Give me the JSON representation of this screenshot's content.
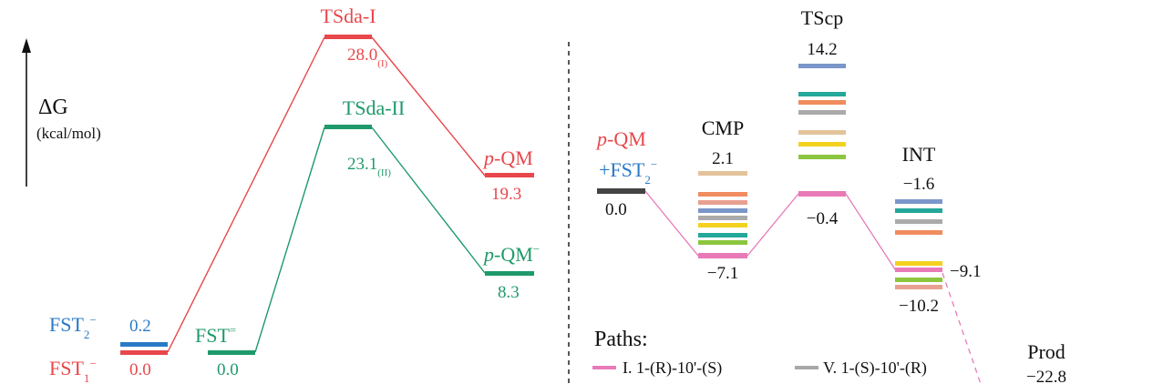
{
  "colors": {
    "red": "#e8474b",
    "green": "#1e9a6a",
    "blue": "#2a79c6",
    "pink": "#e87ab8",
    "dark": "#444444",
    "gray": "#a8a8a8",
    "black": "#111111"
  },
  "left_panel": {
    "axis_label": "ΔG",
    "axis_unit": "(kcal/mol)",
    "fst1": {
      "base": "FST",
      "sub": "1",
      "sup": "−",
      "value": "0.0"
    },
    "fst2": {
      "base": "FST",
      "sub": "2",
      "sup": "−",
      "value": "0.2"
    },
    "fst_eq": {
      "base": "FST",
      "sup": "=",
      "value": "0.0"
    },
    "tsda1": {
      "label": "TSda-I",
      "value": "28.0",
      "sub": "(I)"
    },
    "tsda2": {
      "label": "TSda-II",
      "value": "23.1",
      "sub": "(II)"
    },
    "pqm": {
      "italic": "p",
      "rest": "-QM",
      "value": "19.3"
    },
    "pqm_minus": {
      "italic": "p",
      "rest": "-QM",
      "sup": "−",
      "value": "8.3"
    }
  },
  "right_panel": {
    "start": {
      "line1_italic": "p",
      "line1_rest": "-QM",
      "line2_prefix": "+FST",
      "line2_sub": "2",
      "line2_sup": "−",
      "value": "0.0"
    },
    "cmp": {
      "label": "CMP",
      "top_value": "2.1",
      "bottom_value": "−7.1"
    },
    "tscp": {
      "label": "TScp",
      "top_value": "14.2",
      "bottom_value": "−0.4"
    },
    "int": {
      "label": "INT",
      "top_value": "−1.6",
      "right_value": "−9.1",
      "bottom_value": "−10.2"
    },
    "prod": {
      "label": "Prod",
      "value": "−22.8"
    },
    "paths_title": "Paths:",
    "legend": [
      {
        "label": "I. 1-(R)-10'-(S)",
        "color": "#e87ab8"
      },
      {
        "label": "V. 1-(S)-10'-(R)",
        "color": "#a8a8a8"
      }
    ]
  }
}
